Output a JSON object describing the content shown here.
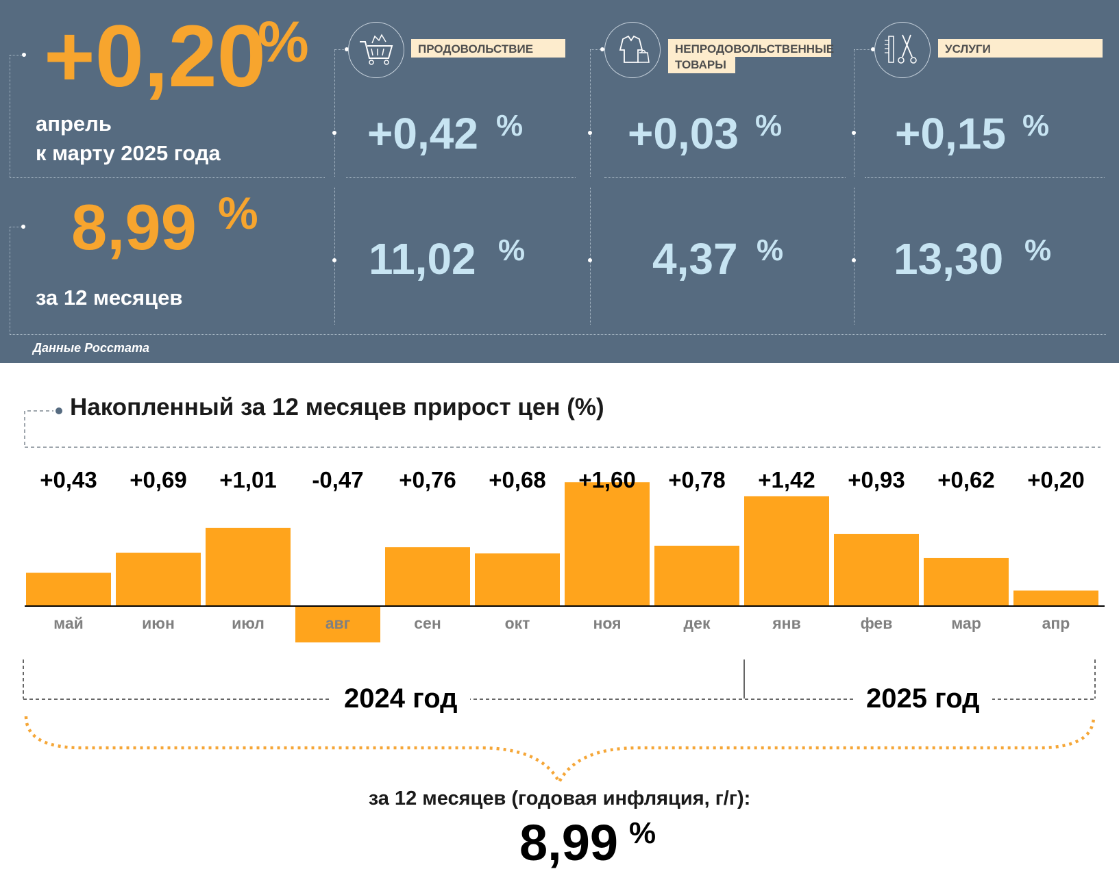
{
  "header": {
    "monthly": {
      "value": "+0,20",
      "unit": "%",
      "period_line1": "апрель",
      "period_line2": "к марту 2025 года"
    },
    "annual": {
      "value": "8,99",
      "unit": "%",
      "period": "за 12 месяцев"
    },
    "source": "Данные Росстата",
    "categories": [
      {
        "label": "ПРОДОВОЛЬСТВИЕ",
        "icon": "shopping-cart-icon",
        "monthly": "+0,42",
        "annual": "11,02",
        "unit": "%"
      },
      {
        "label_line1": "НЕПРОДОВОЛЬСТВЕННЫЕ",
        "label_line2": "ТОВАРЫ",
        "icon": "clothing-icon",
        "monthly": "+0,03",
        "annual": "4,37",
        "unit": "%"
      },
      {
        "label": "УСЛУГИ",
        "icon": "scissors-comb-icon",
        "monthly": "+0,15",
        "annual": "13,30",
        "unit": "%"
      }
    ]
  },
  "chart_data": {
    "type": "bar",
    "title": "Накопленный за 12 месяцев прирост цен (%)",
    "categories": [
      "май",
      "июн",
      "июл",
      "авг",
      "сен",
      "окт",
      "ноя",
      "дек",
      "янв",
      "фев",
      "мар",
      "апр"
    ],
    "values": [
      0.43,
      0.69,
      1.01,
      -0.47,
      0.76,
      0.68,
      1.6,
      0.78,
      1.42,
      0.93,
      0.62,
      0.2
    ],
    "value_labels": [
      "+0,43",
      "+0,69",
      "+1,01",
      "-0,47",
      "+0,76",
      "+0,68",
      "+1,60",
      "+0,78",
      "+1,42",
      "+0,93",
      "+0,62",
      "+0,20"
    ],
    "ylim": [
      -0.5,
      1.6
    ],
    "years": [
      {
        "label": "2024 год",
        "months": [
          "май",
          "июн",
          "июл",
          "авг",
          "сен",
          "окт",
          "ноя",
          "дек"
        ]
      },
      {
        "label": "2025 год",
        "months": [
          "янв",
          "фев",
          "мар",
          "апр"
        ]
      }
    ],
    "bar_color": "#ffa41c",
    "axis_label_color": "#808080"
  },
  "summary": {
    "label": "за 12 месяцев (годовая инфляция, г/г):",
    "value": "8,99",
    "unit": "%"
  },
  "colors": {
    "panel_bg": "#566b80",
    "accent_orange": "#f7a52e",
    "value_light_blue": "#c7e4f2",
    "category_label_bg": "#fdeccd"
  }
}
